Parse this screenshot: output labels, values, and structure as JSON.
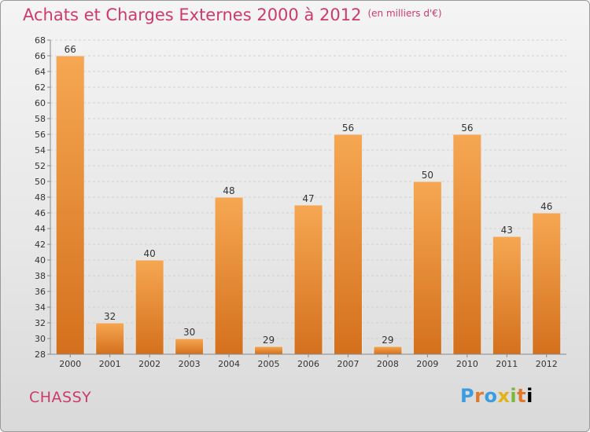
{
  "header": {
    "title": "Achats et Charges Externes 2000 à 2012",
    "unit": "(en milliers d'€)"
  },
  "footer": {
    "commune": "CHASSY",
    "brand": "Proxiti"
  },
  "colors": {
    "bar_top": "#f6a752",
    "bar_bottom": "#d4701d",
    "title": "#cc3a6e"
  },
  "chart_data": {
    "type": "bar",
    "title": "Achats et Charges Externes 2000 à 2012",
    "categories": [
      "2000",
      "2001",
      "2002",
      "2003",
      "2004",
      "2005",
      "2006",
      "2007",
      "2008",
      "2009",
      "2010",
      "2011",
      "2012"
    ],
    "values": [
      66,
      32,
      40,
      30,
      48,
      29,
      47,
      56,
      29,
      50,
      56,
      43,
      46
    ],
    "ylim": [
      28,
      68
    ],
    "yticks": [
      28,
      30,
      32,
      34,
      36,
      38,
      40,
      42,
      44,
      46,
      48,
      50,
      52,
      54,
      56,
      58,
      60,
      62,
      64,
      66,
      68
    ],
    "grid": true
  }
}
